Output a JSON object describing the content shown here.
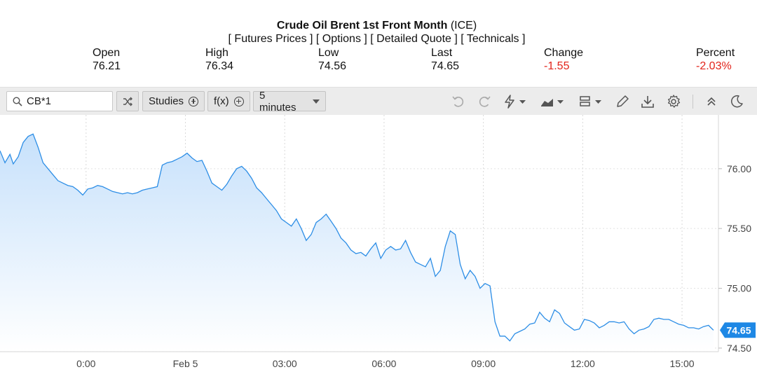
{
  "header": {
    "title": "Crude Oil Brent 1st Front Month",
    "exchange": "(ICE)",
    "links": [
      "[ Futures Prices ]",
      "[ Options ]",
      "[ Detailed Quote ]",
      "[ Technicals ]"
    ]
  },
  "stats": {
    "open": {
      "label": "Open",
      "value": "76.21"
    },
    "high": {
      "label": "High",
      "value": "76.34"
    },
    "low": {
      "label": "Low",
      "value": "74.56"
    },
    "last": {
      "label": "Last",
      "value": "74.65"
    },
    "change": {
      "label": "Change",
      "value": "-1.55"
    },
    "percent": {
      "label": "Percent",
      "value": "-2.03%"
    }
  },
  "toolbar": {
    "symbol": "CB*1",
    "studies_label": "Studies",
    "fx_label": "f(x)",
    "interval_label": "5 minutes",
    "icons": [
      "shuffle-icon",
      "undo-icon",
      "redo-icon",
      "lightning-icon",
      "chart-type-icon",
      "layout-icon",
      "pencil-icon",
      "download-icon",
      "gear-icon",
      "collapse-icon",
      "moon-icon"
    ]
  },
  "colors": {
    "line": "#2d8ee6",
    "fill_top": "#c7e1fb",
    "negative": "#e2231a",
    "last_price_badge": "#1e88e5"
  },
  "chart_data": {
    "type": "area",
    "title": "",
    "xlabel": "",
    "ylabel": "",
    "x_ticks": [
      "0:00",
      "Feb 5",
      "03:00",
      "06:00",
      "09:00",
      "12:00",
      "15:00"
    ],
    "x_tick_positions_hours": [
      -3,
      0,
      3,
      6,
      9,
      12,
      15
    ],
    "y_ticks": [
      "76.00",
      "75.50",
      "75.00",
      "74.50"
    ],
    "y_tick_values": [
      76.0,
      75.5,
      75.0,
      74.5
    ],
    "ylim": [
      74.47,
      76.45
    ],
    "xlim_hours": [
      -5.6,
      16.1
    ],
    "grid": true,
    "last_price_label": "74.65",
    "last_price": 74.65,
    "series": [
      {
        "x_hours": [
          -5.6,
          -5.45,
          -5.3,
          -5.2,
          -5.05,
          -4.9,
          -4.75,
          -4.6,
          -4.45,
          -4.3,
          -4.15,
          -4.0,
          -3.85,
          -3.7,
          -3.55,
          -3.4,
          -3.25,
          -3.1,
          -2.95,
          -2.8,
          -2.65,
          -2.5,
          -2.35,
          -2.2,
          -2.05,
          -1.9,
          -1.75,
          -1.6,
          -1.45,
          -1.3,
          -1.15,
          -1.0,
          -0.85,
          -0.7,
          -0.55,
          -0.4,
          -0.25,
          -0.1,
          0.05,
          0.2,
          0.35,
          0.5,
          0.65,
          0.8,
          0.95,
          1.1,
          1.25,
          1.4,
          1.55,
          1.7,
          1.85,
          2.0,
          2.15,
          2.3,
          2.45,
          2.6,
          2.75,
          2.9,
          3.05,
          3.2,
          3.35,
          3.5,
          3.65,
          3.8,
          3.95,
          4.1,
          4.25,
          4.4,
          4.55,
          4.7,
          4.85,
          5.0,
          5.15,
          5.3,
          5.45,
          5.6,
          5.75,
          5.9,
          6.05,
          6.2,
          6.35,
          6.5,
          6.65,
          6.8,
          6.95,
          7.1,
          7.25,
          7.4,
          7.55,
          7.7,
          7.85,
          8.0,
          8.15,
          8.3,
          8.45,
          8.6,
          8.75,
          8.9,
          9.05,
          9.2,
          9.35,
          9.5,
          9.65,
          9.8,
          9.95,
          10.1,
          10.25,
          10.4,
          10.55,
          10.7,
          10.85,
          11.0,
          11.15,
          11.3,
          11.45,
          11.6,
          11.75,
          11.9,
          12.05,
          12.2,
          12.35,
          12.5,
          12.65,
          12.8,
          12.95,
          13.1,
          13.25,
          13.4,
          13.55,
          13.7,
          13.85,
          14.0,
          14.15,
          14.3,
          14.45,
          14.6,
          14.75,
          14.9,
          15.05,
          15.2,
          15.35,
          15.5,
          15.65,
          15.8,
          15.95
        ],
        "values": [
          76.15,
          76.05,
          76.12,
          76.04,
          76.1,
          76.22,
          76.27,
          76.29,
          76.18,
          76.05,
          76.0,
          75.95,
          75.9,
          75.88,
          75.86,
          75.85,
          75.82,
          75.78,
          75.83,
          75.84,
          75.86,
          75.85,
          75.83,
          75.81,
          75.8,
          75.79,
          75.8,
          75.79,
          75.8,
          75.82,
          75.83,
          75.84,
          75.85,
          76.03,
          76.05,
          76.06,
          76.08,
          76.1,
          76.13,
          76.09,
          76.06,
          76.07,
          75.98,
          75.88,
          75.85,
          75.82,
          75.87,
          75.94,
          76.0,
          76.02,
          75.98,
          75.92,
          75.84,
          75.8,
          75.75,
          75.7,
          75.65,
          75.58,
          75.55,
          75.52,
          75.58,
          75.5,
          75.4,
          75.45,
          75.55,
          75.58,
          75.62,
          75.56,
          75.5,
          75.42,
          75.38,
          75.32,
          75.29,
          75.3,
          75.27,
          75.33,
          75.38,
          75.25,
          75.32,
          75.35,
          75.32,
          75.33,
          75.4,
          75.3,
          75.22,
          75.2,
          75.18,
          75.25,
          75.1,
          75.15,
          75.35,
          75.48,
          75.45,
          75.2,
          75.08,
          75.15,
          75.1,
          75.0,
          75.04,
          75.02,
          74.72,
          74.6,
          74.6,
          74.56,
          74.62,
          74.64,
          74.66,
          74.7,
          74.71,
          74.8,
          74.75,
          74.72,
          74.82,
          74.79,
          74.71,
          74.68,
          74.65,
          74.66,
          74.74,
          74.73,
          74.71,
          74.67,
          74.69,
          74.72,
          74.72,
          74.71,
          74.72,
          74.66,
          74.62,
          74.65,
          74.66,
          74.68,
          74.74,
          74.75,
          74.74,
          74.74,
          74.72,
          74.7,
          74.69,
          74.67,
          74.67,
          74.66,
          74.68,
          74.69,
          74.65
        ]
      }
    ]
  }
}
